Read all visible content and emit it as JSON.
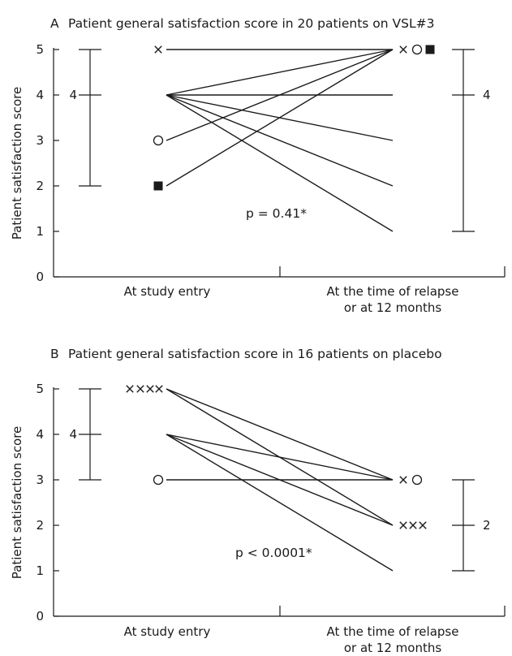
{
  "chart_data": [
    {
      "type": "line",
      "panel_letter": "A",
      "title": "Patient general satisfaction score in 20 patients on VSL#3",
      "ylabel": "Patient satisfaction score",
      "ylim": [
        0,
        5
      ],
      "yticks": [
        "0",
        "1",
        "2",
        "3",
        "4",
        "5"
      ],
      "categories": [
        "At study entry",
        "At the time of relapse",
        "or at 12 months"
      ],
      "annotation": "p = 0.41*",
      "segments": [
        {
          "from": 5,
          "to": 5
        },
        {
          "from": 4,
          "to": 5
        },
        {
          "from": 4,
          "to": 4
        },
        {
          "from": 4,
          "to": 3
        },
        {
          "from": 4,
          "to": 2
        },
        {
          "from": 4,
          "to": 1
        },
        {
          "from": 3,
          "to": 5
        },
        {
          "from": 2,
          "to": 5
        }
      ],
      "markers": [
        {
          "side": "left",
          "y": 5,
          "glyphs": [
            "cross"
          ]
        },
        {
          "side": "left",
          "y": 3,
          "glyphs": [
            "circle"
          ]
        },
        {
          "side": "left",
          "y": 2,
          "glyphs": [
            "square"
          ]
        },
        {
          "side": "right",
          "y": 5,
          "glyphs": [
            "cross",
            "circle",
            "square"
          ]
        }
      ],
      "ranges": [
        {
          "side": "left",
          "min": 2,
          "max": 5,
          "median": 4,
          "median_label": "4"
        },
        {
          "side": "right",
          "min": 1,
          "max": 5,
          "median": 4,
          "median_label": "4"
        }
      ]
    },
    {
      "type": "line",
      "panel_letter": "B",
      "title": "Patient general satisfaction score in 16 patients on placebo",
      "ylabel": "Patient satisfaction score",
      "ylim": [
        0,
        5
      ],
      "yticks": [
        "0",
        "1",
        "2",
        "3",
        "4",
        "5"
      ],
      "categories": [
        "At study entry",
        "At the time of relapse",
        "or at 12 months"
      ],
      "annotation": "p < 0.0001*",
      "segments": [
        {
          "from": 5,
          "to": 3
        },
        {
          "from": 5,
          "to": 2
        },
        {
          "from": 4,
          "to": 3
        },
        {
          "from": 4,
          "to": 2
        },
        {
          "from": 4,
          "to": 1
        },
        {
          "from": 3,
          "to": 3
        }
      ],
      "markers": [
        {
          "side": "left",
          "y": 5,
          "glyphs": [
            "cross",
            "cross",
            "cross",
            "cross"
          ]
        },
        {
          "side": "left",
          "y": 3,
          "glyphs": [
            "circle"
          ]
        },
        {
          "side": "right",
          "y": 3,
          "glyphs": [
            "cross",
            "circle"
          ]
        },
        {
          "side": "right",
          "y": 2,
          "glyphs": [
            "cross",
            "cross",
            "cross"
          ]
        }
      ],
      "ranges": [
        {
          "side": "left",
          "min": 3,
          "max": 5,
          "median": 4,
          "median_label": "4"
        },
        {
          "side": "right",
          "min": 1,
          "max": 3,
          "median": 2,
          "median_label": "2"
        }
      ]
    }
  ]
}
